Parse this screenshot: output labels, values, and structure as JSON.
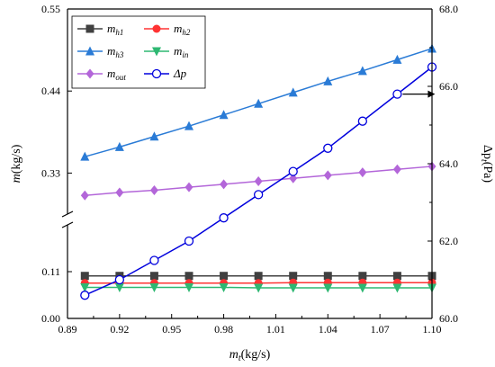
{
  "chart_data": {
    "type": "line",
    "x": [
      0.9,
      0.92,
      0.94,
      0.96,
      0.98,
      1.0,
      1.02,
      1.04,
      1.06,
      1.08,
      1.1
    ],
    "xlabel": {
      "main": "m",
      "sub": "t",
      "unit": "(kg/s)"
    },
    "ylabel_left": {
      "main": "m",
      "unit": "(kg/s)"
    },
    "ylabel_right": {
      "main": "Δp",
      "sub": "t",
      "unit": "(Pa)"
    },
    "xlim": [
      0.89,
      1.1
    ],
    "x_ticks": [
      "0.89",
      "0.92",
      "0.95",
      "0.98",
      "1.01",
      "1.04",
      "1.07",
      "1.10"
    ],
    "y_left_ticks": [
      "0.00",
      "0.11",
      "0.33",
      "0.44",
      "0.55"
    ],
    "y_left_ranges": {
      "lower": [
        0.0,
        0.22
      ],
      "upper": [
        0.275,
        0.55
      ]
    },
    "y_right_ticks": [
      "60.0",
      "62.0",
      "64.0",
      "66.0",
      "68.0"
    ],
    "y_right_range": [
      60.0,
      68.0
    ],
    "axis_break": true,
    "series": [
      {
        "name": "m",
        "sub": "h1",
        "marker": "square",
        "color": "#404040",
        "axis": "left",
        "values": [
          0.1,
          0.1,
          0.1,
          0.1,
          0.1,
          0.1,
          0.1,
          0.1,
          0.1,
          0.1,
          0.1
        ]
      },
      {
        "name": "m",
        "sub": "h2",
        "marker": "circle",
        "color": "#ff3333",
        "axis": "left",
        "values": [
          0.083,
          0.083,
          0.083,
          0.083,
          0.083,
          0.083,
          0.084,
          0.084,
          0.084,
          0.084,
          0.084
        ]
      },
      {
        "name": "m",
        "sub": "h3",
        "marker": "triangle-up",
        "color": "#2a7bd6",
        "axis": "left",
        "values": [
          0.352,
          0.365,
          0.379,
          0.393,
          0.408,
          0.423,
          0.438,
          0.453,
          0.467,
          0.482,
          0.497
        ]
      },
      {
        "name": "m",
        "sub": "in",
        "marker": "triangle-down",
        "color": "#2eb872",
        "axis": "left",
        "values": [
          0.073,
          0.073,
          0.073,
          0.073,
          0.073,
          0.072,
          0.072,
          0.072,
          0.072,
          0.072,
          0.072
        ]
      },
      {
        "name": "m",
        "sub": "out",
        "marker": "diamond",
        "color": "#b366d9",
        "axis": "left",
        "values": [
          0.3,
          0.304,
          0.307,
          0.311,
          0.315,
          0.319,
          0.323,
          0.327,
          0.331,
          0.335,
          0.339
        ]
      },
      {
        "name": "Δp",
        "sub": "",
        "marker": "open-circle",
        "color": "#0000dd",
        "axis": "right",
        "values": [
          60.6,
          61.0,
          61.5,
          62.0,
          62.6,
          63.2,
          63.8,
          64.4,
          65.1,
          65.8,
          66.5
        ]
      }
    ],
    "legend_position": "top-left"
  }
}
